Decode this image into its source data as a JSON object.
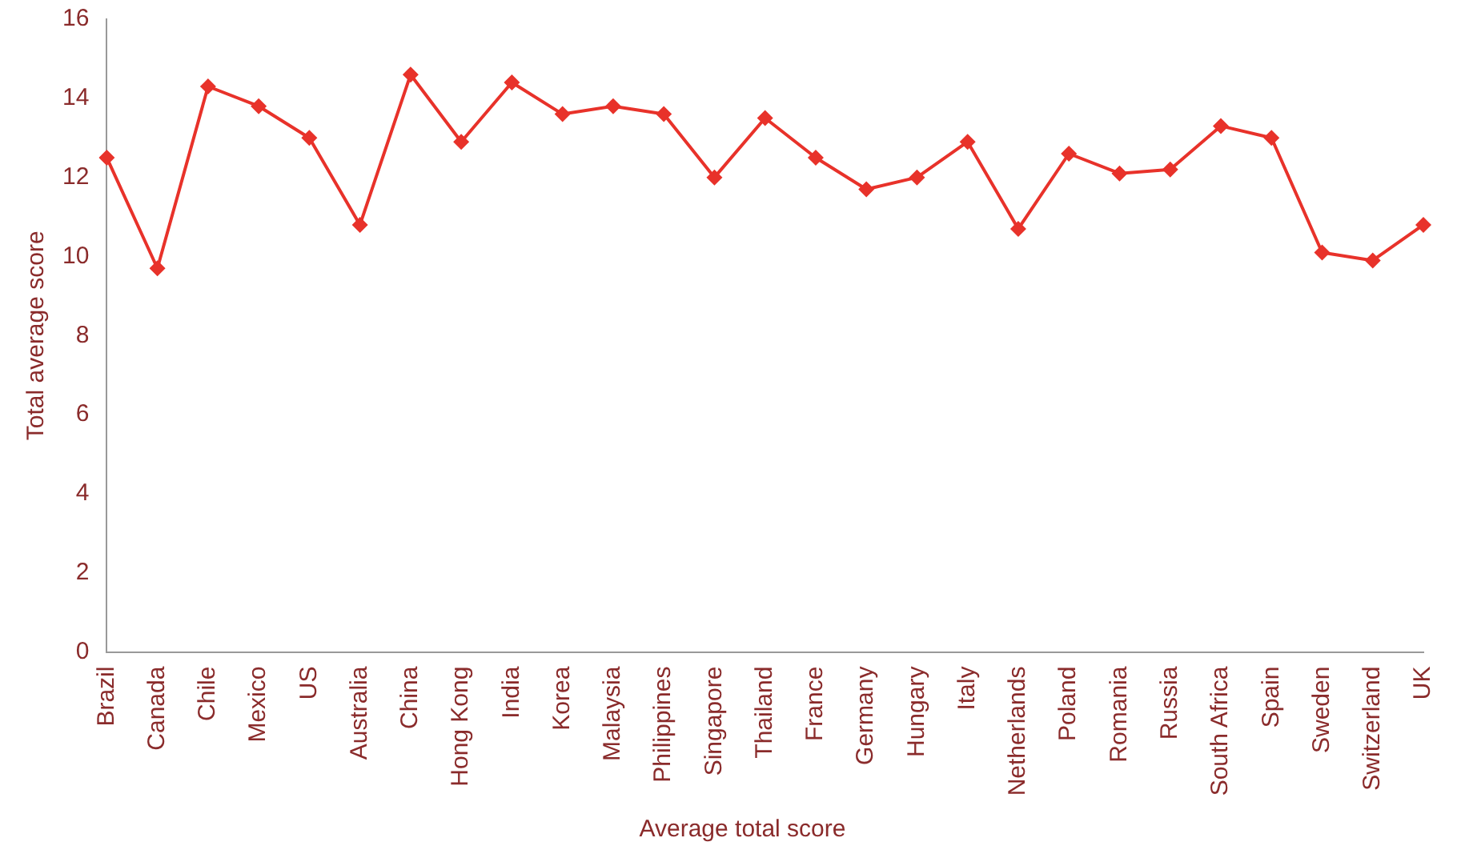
{
  "chart_data": {
    "type": "line",
    "ylabel": "Total average score",
    "categories": [
      "Brazil",
      "Canada",
      "Chile",
      "Mexico",
      "US",
      "Australia",
      "China",
      "Hong Kong",
      "India",
      "Korea",
      "Malaysia",
      "Philippines",
      "Singapore",
      "Thailand",
      "France",
      "Germany",
      "Hungary",
      "Italy",
      "Netherlands",
      "Poland",
      "Romania",
      "Russia",
      "South Africa",
      "Spain",
      "Sweden",
      "Switzerland",
      "UK"
    ],
    "series": [
      {
        "name": "Average total score",
        "color": "#e8322a",
        "values": [
          12.5,
          9.7,
          14.3,
          13.8,
          13.0,
          10.8,
          14.6,
          12.9,
          14.4,
          13.6,
          13.8,
          13.6,
          12.0,
          13.5,
          12.5,
          11.7,
          12.0,
          12.9,
          10.7,
          12.6,
          12.1,
          12.2,
          13.3,
          13.0,
          10.1,
          9.9,
          10.8
        ]
      }
    ],
    "ylim": [
      0,
      16
    ],
    "yticks": [
      0,
      2,
      4,
      6,
      8,
      10,
      12,
      14,
      16
    ],
    "grid": false,
    "legend": "bottom",
    "marker": "diamond",
    "line_style": "solid"
  }
}
